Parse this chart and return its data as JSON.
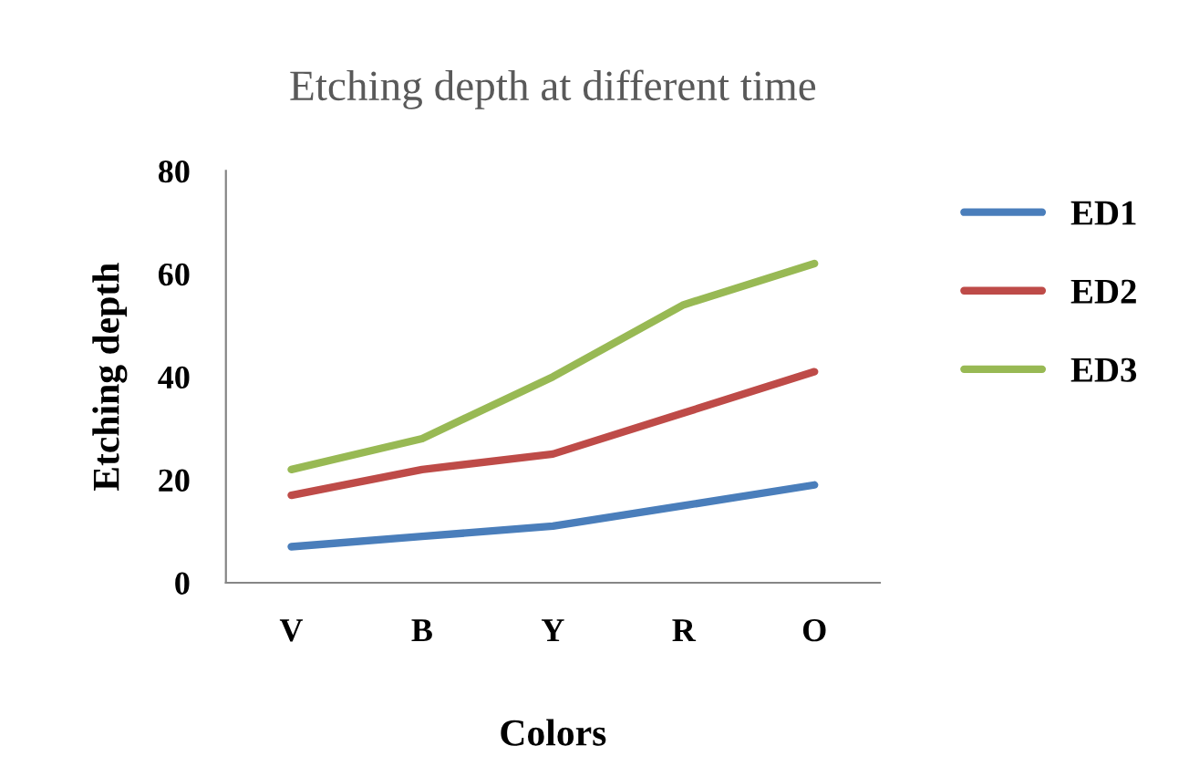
{
  "chart_data": {
    "type": "line",
    "title": "Etching depth at different time",
    "xlabel": "Colors",
    "ylabel": "Etching depth",
    "categories": [
      "V",
      "B",
      "Y",
      "R",
      "O"
    ],
    "series": [
      {
        "name": "ED1",
        "color": "#4a7ebb",
        "values": [
          7,
          9,
          11,
          15,
          19
        ]
      },
      {
        "name": "ED2",
        "color": "#be4b48",
        "values": [
          17,
          22,
          25,
          33,
          41
        ]
      },
      {
        "name": "ED3",
        "color": "#98b954",
        "values": [
          22,
          28,
          40,
          54,
          62
        ]
      }
    ],
    "ylim": [
      0,
      80
    ],
    "yticks": [
      0,
      20,
      40,
      60,
      80
    ],
    "grid": false,
    "legend": "right",
    "marker": "none",
    "line_style": "solid"
  }
}
